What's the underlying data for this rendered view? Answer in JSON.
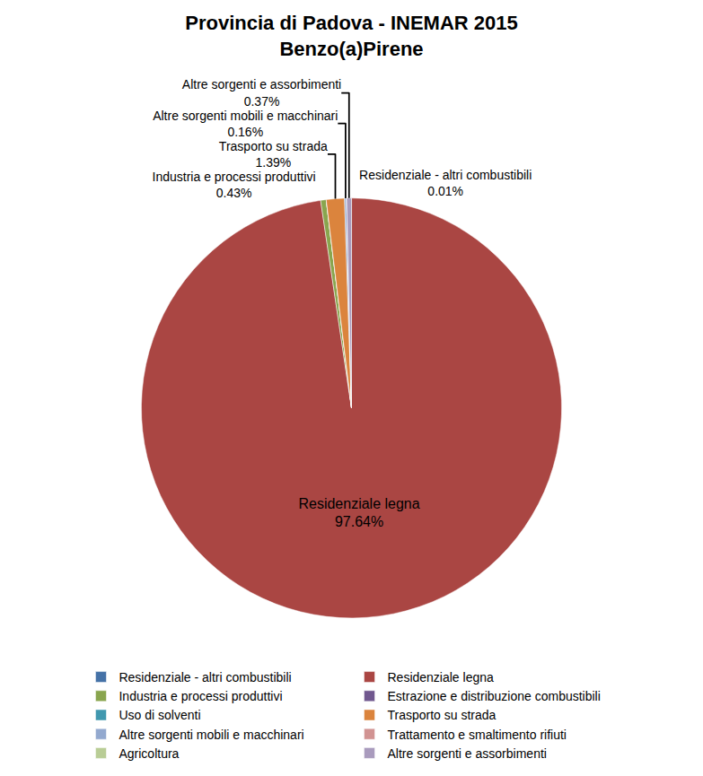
{
  "chart_data": {
    "type": "pie",
    "title": "Provincia di Padova - INEMAR 2015",
    "subtitle": "Benzo(a)Pirene",
    "categories": [
      "Residenziale - altri combustibili",
      "Residenziale legna",
      "Industria e processi produttivi",
      "Estrazione e distribuzione combustibili",
      "Uso di solventi",
      "Trasporto su strada",
      "Altre sorgenti mobili e macchinari",
      "Trattamento e smaltimento rifiuti",
      "Agricoltura",
      "Altre sorgenti e assorbimenti"
    ],
    "values": [
      0.01,
      97.64,
      0.43,
      0,
      0,
      1.39,
      0.16,
      0,
      0,
      0.37
    ],
    "value_labels": [
      "0.01%",
      "97.64%",
      "0.43%",
      null,
      null,
      "1.39%",
      "0.16%",
      null,
      null,
      "0.37%"
    ],
    "colors": [
      "#4572A7",
      "#AA4643",
      "#89A54E",
      "#71588F",
      "#4198AF",
      "#DB843D",
      "#93A9CF",
      "#D19392",
      "#B9CD96",
      "#A99BBD"
    ],
    "data_labels": true,
    "legend": "bottom"
  }
}
